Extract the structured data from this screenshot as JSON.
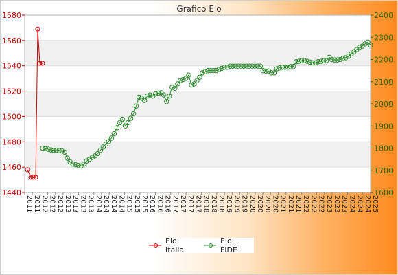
{
  "chart_data": {
    "type": "line",
    "title": "Grafico Elo",
    "y_left": {
      "min": 1440,
      "max": 1580,
      "ticks": [
        1440,
        1460,
        1480,
        1500,
        1520,
        1540,
        1560,
        1580
      ],
      "color": "#cc0000"
    },
    "y_right": {
      "min": 1600,
      "max": 2400,
      "ticks": [
        1600,
        1700,
        1800,
        1900,
        2000,
        2100,
        2200,
        2300,
        2400
      ],
      "color": "#336600"
    },
    "x_label_samples": [
      "2011",
      "2011",
      "2012",
      "2012",
      "2012",
      "2013",
      "2013",
      "2013",
      "2013",
      "2014",
      "2014",
      "2014",
      "2014",
      "2015",
      "2015",
      "2015",
      "2016",
      "2016",
      "2016",
      "2017",
      "2017",
      "2017",
      "2017",
      "2018",
      "2018",
      "2018",
      "2019",
      "2019",
      "2019",
      "2020",
      "2020",
      "2020",
      "2020",
      "2021",
      "2021",
      "2021",
      "2022",
      "2022",
      "2022",
      "2023",
      "2023",
      "2023",
      "2024",
      "2024",
      "2024",
      "2025"
    ],
    "series": [
      {
        "name": "Elo Italia",
        "axis": "left",
        "color": "#cc0000",
        "values": [
          1458,
          1452,
          1452,
          1452,
          1569,
          1542,
          1542
        ]
      },
      {
        "name": "Elo FIDE",
        "axis": "right",
        "color": "#2d8a2d",
        "values": [
          1800,
          1798,
          1795,
          1792,
          1790,
          1790,
          1789,
          1788,
          1782,
          1755,
          1738,
          1728,
          1725,
          1722,
          1720,
          1728,
          1742,
          1750,
          1758,
          1765,
          1775,
          1790,
          1805,
          1818,
          1830,
          1845,
          1865,
          1892,
          1915,
          1930,
          1900,
          1915,
          1935,
          1955,
          1990,
          2030,
          2025,
          2015,
          2035,
          2040,
          2035,
          2045,
          2048,
          2050,
          2040,
          2010,
          2035,
          2075,
          2070,
          2090,
          2105,
          2110,
          2115,
          2130,
          2085,
          2090,
          2105,
          2120,
          2140,
          2145,
          2150,
          2150,
          2150,
          2150,
          2155,
          2160,
          2165,
          2165,
          2170,
          2170,
          2170,
          2170,
          2170,
          2170,
          2170,
          2170,
          2170,
          2170,
          2170,
          2170,
          2150,
          2148,
          2148,
          2140,
          2140,
          2158,
          2162,
          2165,
          2165,
          2165,
          2168,
          2168,
          2190,
          2192,
          2195,
          2195,
          2192,
          2188,
          2185,
          2185,
          2190,
          2192,
          2195,
          2195,
          2210,
          2200,
          2198,
          2198,
          2200,
          2205,
          2208,
          2215,
          2225,
          2235,
          2245,
          2255,
          2260,
          2270,
          2278,
          2265
        ]
      }
    ],
    "legend_position": "bottom-center",
    "grid": "horizontal bands"
  }
}
